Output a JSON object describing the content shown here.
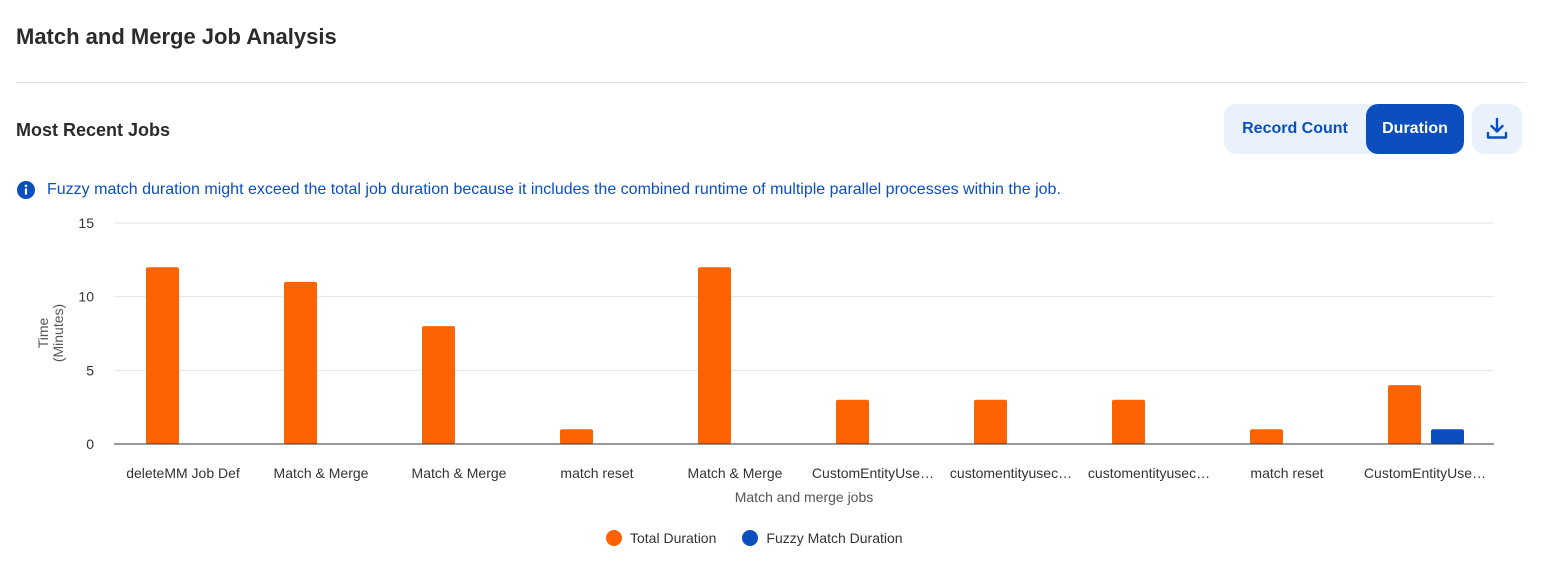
{
  "header": {
    "title": "Match and Merge Job Analysis"
  },
  "section": {
    "title": "Most Recent Jobs"
  },
  "toolbar": {
    "record_count_label": "Record Count",
    "duration_label": "Duration",
    "active": "Duration",
    "download_icon": "download-icon"
  },
  "info": {
    "icon": "info-icon",
    "text": "Fuzzy match duration might exceed the total job duration because it includes the combined runtime of multiple parallel processes within the job."
  },
  "colors": {
    "accent": "#0b4fbf",
    "total": "#ff6200",
    "fuzzy": "#0b4fbf"
  },
  "chart_data": {
    "type": "bar",
    "categories": [
      "deleteMM Job Def",
      "Match & Merge",
      "Match & Merge",
      "match reset",
      "Match & Merge",
      "CustomEntityUse…",
      "customentityusec…",
      "customentityusec…",
      "match reset",
      "CustomEntityUse…"
    ],
    "series": [
      {
        "name": "Total Duration",
        "values": [
          12,
          11,
          8,
          1,
          12,
          3,
          3,
          3,
          1,
          4
        ]
      },
      {
        "name": "Fuzzy Match Duration",
        "values": [
          0,
          0,
          0,
          0,
          0,
          0,
          0,
          0,
          0,
          1
        ]
      }
    ],
    "xlabel": "Match and merge jobs",
    "ylabel_lines": [
      "Time",
      "(Minutes)"
    ],
    "ylim": [
      0,
      15
    ],
    "yticks": [
      0,
      5,
      10,
      15
    ],
    "grid": true,
    "legend": "bottom"
  }
}
